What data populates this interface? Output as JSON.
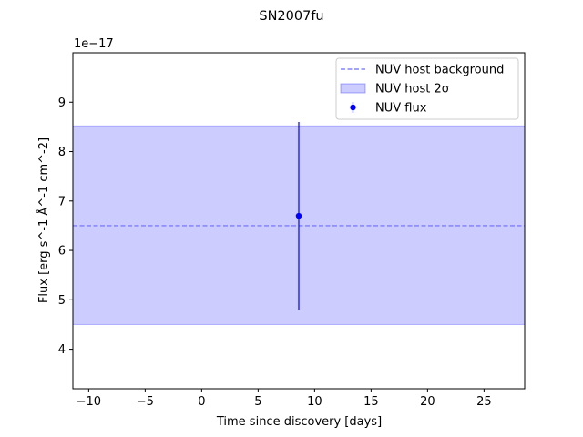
{
  "chart_data": {
    "type": "scatter",
    "title": "SN2007fu",
    "xlabel": "Time since discovery [days]",
    "ylabel": "Flux [erg s^-1 Å^-1 cm^-2]",
    "y_offset_label": "1e−17",
    "y_scale_exponent": -17,
    "xlim": [
      -11.4,
      28.6
    ],
    "ylim": [
      3.2,
      10.0
    ],
    "x_ticks": [
      -10,
      -5,
      0,
      5,
      10,
      15,
      20,
      25
    ],
    "x_tick_labels": [
      "−10",
      "−5",
      "0",
      "5",
      "10",
      "15",
      "20",
      "25"
    ],
    "y_ticks": [
      4,
      5,
      6,
      7,
      8,
      9
    ],
    "y_tick_labels": [
      "4",
      "5",
      "6",
      "7",
      "8",
      "9"
    ],
    "grid": false,
    "legend_position": "upper right",
    "series": [
      {
        "name": "NUV host background",
        "kind": "hline",
        "y": 6.5,
        "color": "#6b6bff",
        "linestyle": "dashed"
      },
      {
        "name": "NUV host 2σ",
        "kind": "band",
        "y_low": 4.5,
        "y_high": 8.52,
        "color": "#0000ff",
        "alpha": 0.2
      },
      {
        "name": "NUV flux",
        "kind": "errorbar",
        "points": [
          {
            "x": 8.6,
            "y": 6.7,
            "y_err": 1.9
          }
        ],
        "color": "#0000ff"
      }
    ]
  }
}
